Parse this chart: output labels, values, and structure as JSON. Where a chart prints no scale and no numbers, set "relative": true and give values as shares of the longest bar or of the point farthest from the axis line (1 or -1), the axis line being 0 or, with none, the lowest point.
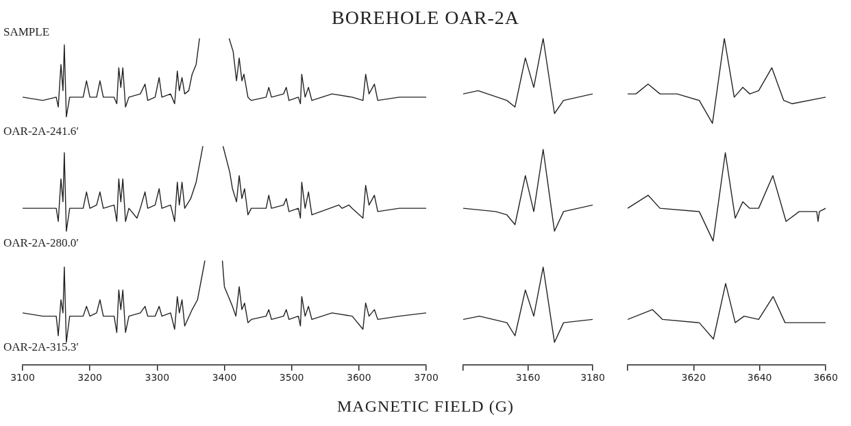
{
  "chart_data": [
    {
      "type": "line",
      "title": "BOREHOLE OAR-2A",
      "xlabel": "MAGNETIC FIELD (G)",
      "annotations": [
        "SAMPLE"
      ],
      "relative": true,
      "xlim": [
        3100,
        3700
      ],
      "xticks": [
        3100,
        3200,
        3300,
        3400,
        3500,
        3600,
        3700
      ],
      "series": [
        {
          "name": "OAR-2A-241.6′",
          "color": "#222222",
          "x": [
            3100,
            3130,
            3150,
            3153,
            3157,
            3160,
            3162,
            3165,
            3170,
            3190,
            3195,
            3200,
            3210,
            3215,
            3220,
            3236,
            3240,
            3243,
            3246,
            3249,
            3253,
            3258,
            3275,
            3282,
            3286,
            3297,
            3303,
            3307,
            3320,
            3326,
            3330,
            3333,
            3337,
            3341,
            3347,
            3352,
            3358,
            3363,
            3385,
            3407,
            3413,
            3418,
            3422,
            3426,
            3429,
            3435,
            3440,
            3462,
            3466,
            3470,
            3488,
            3492,
            3496,
            3510,
            3513,
            3515,
            3520,
            3525,
            3530,
            3560,
            3590,
            3606,
            3610,
            3615,
            3623,
            3628,
            3660,
            3688,
            3700
          ],
          "values": [
            0.82,
            0.81,
            0.82,
            0.79,
            0.92,
            0.84,
            0.98,
            0.76,
            0.82,
            0.82,
            0.87,
            0.82,
            0.82,
            0.87,
            0.82,
            0.82,
            0.8,
            0.91,
            0.85,
            0.91,
            0.79,
            0.82,
            0.83,
            0.86,
            0.81,
            0.82,
            0.88,
            0.82,
            0.83,
            0.8,
            0.9,
            0.84,
            0.88,
            0.83,
            0.84,
            0.89,
            0.92,
            1,
            null,
            1,
            0.96,
            0.87,
            0.94,
            0.87,
            0.89,
            0.82,
            0.81,
            0.82,
            0.85,
            0.82,
            0.83,
            0.85,
            0.81,
            0.82,
            0.8,
            0.89,
            0.82,
            0.85,
            0.81,
            0.83,
            0.82,
            0.81,
            0.89,
            0.83,
            0.86,
            0.81,
            0.82,
            0.82,
            0.82
          ]
        },
        {
          "name": "OAR-2A-280.0′",
          "color": "#222222",
          "x": [
            3100,
            3130,
            3150,
            3153,
            3157,
            3160,
            3162,
            3165,
            3170,
            3190,
            3195,
            3200,
            3210,
            3215,
            3220,
            3236,
            3240,
            3243,
            3246,
            3249,
            3253,
            3258,
            3270,
            3275,
            3282,
            3286,
            3297,
            3303,
            3307,
            3320,
            3326,
            3330,
            3333,
            3337,
            3341,
            3350,
            3358,
            3368,
            3383,
            3398,
            3408,
            3412,
            3418,
            3422,
            3426,
            3430,
            3435,
            3440,
            3462,
            3466,
            3470,
            3488,
            3492,
            3496,
            3510,
            3513,
            3515,
            3520,
            3525,
            3530,
            3570,
            3575,
            3585,
            3590,
            3606,
            3610,
            3615,
            3623,
            3628,
            3660,
            3700
          ],
          "values": [
            0.48,
            0.48,
            0.48,
            0.44,
            0.57,
            0.5,
            0.65,
            0.41,
            0.48,
            0.48,
            0.53,
            0.48,
            0.49,
            0.53,
            0.48,
            0.49,
            0.44,
            0.57,
            0.5,
            0.57,
            0.44,
            0.48,
            0.45,
            0.48,
            0.53,
            0.48,
            0.49,
            0.54,
            0.48,
            0.49,
            0.44,
            0.56,
            0.49,
            0.56,
            0.48,
            0.51,
            0.56,
            0.67,
            null,
            0.67,
            0.59,
            0.54,
            0.5,
            0.58,
            0.51,
            0.54,
            0.46,
            0.48,
            0.48,
            0.52,
            0.48,
            0.49,
            0.51,
            0.47,
            0.48,
            0.45,
            0.56,
            0.48,
            0.53,
            0.46,
            0.49,
            0.48,
            0.49,
            0.48,
            0.45,
            0.55,
            0.49,
            0.52,
            0.47,
            0.48,
            0.48
          ]
        },
        {
          "name": "OAR-2A-315.3′",
          "color": "#222222",
          "x": [
            3100,
            3130,
            3150,
            3153,
            3157,
            3160,
            3162,
            3165,
            3170,
            3190,
            3195,
            3200,
            3210,
            3215,
            3220,
            3236,
            3240,
            3243,
            3246,
            3249,
            3253,
            3258,
            3275,
            3282,
            3286,
            3297,
            3303,
            3307,
            3320,
            3326,
            3330,
            3333,
            3337,
            3341,
            3352,
            3360,
            3371,
            3384,
            3397,
            3400,
            3412,
            3417,
            3422,
            3426,
            3430,
            3435,
            3440,
            3462,
            3466,
            3470,
            3488,
            3492,
            3496,
            3510,
            3513,
            3515,
            3520,
            3525,
            3530,
            3560,
            3590,
            3606,
            3610,
            3615,
            3623,
            3628,
            3660,
            3700
          ],
          "values": [
            0.16,
            0.15,
            0.15,
            0.09,
            0.2,
            0.16,
            0.3,
            0.07,
            0.15,
            0.15,
            0.18,
            0.15,
            0.16,
            0.2,
            0.15,
            0.15,
            0.1,
            0.23,
            0.17,
            0.23,
            0.1,
            0.15,
            0.16,
            0.18,
            0.15,
            0.15,
            0.18,
            0.15,
            0.16,
            0.11,
            0.21,
            0.16,
            0.2,
            0.12,
            0.17,
            0.2,
            0.32,
            null,
            0.32,
            0.24,
            0.18,
            0.15,
            0.24,
            0.17,
            0.19,
            0.13,
            0.14,
            0.15,
            0.17,
            0.14,
            0.15,
            0.17,
            0.14,
            0.15,
            0.12,
            0.21,
            0.15,
            0.18,
            0.14,
            0.16,
            0.15,
            0.11,
            0.19,
            0.15,
            0.17,
            0.14,
            0.15,
            0.16
          ]
        }
      ]
    },
    {
      "type": "line",
      "relative": true,
      "xlim": [
        3140,
        3180
      ],
      "xticks": [
        {
          "value": 3140,
          "label": null
        },
        3160,
        3180
      ],
      "series": [
        {
          "color": "#222222",
          "x": [
            3140,
            3144.6,
            3153.5,
            3156,
            3159.2,
            3161.8,
            3164.7,
            3168.2,
            3171,
            3180
          ],
          "values": [
            0.83,
            0.84,
            0.81,
            0.79,
            0.94,
            0.85,
            1,
            0.77,
            0.81,
            0.83
          ]
        },
        {
          "color": "#222222",
          "x": [
            3140,
            3150,
            3153.5,
            3156,
            3159.2,
            3161.8,
            3164.7,
            3168.2,
            3171,
            3180
          ],
          "values": [
            0.48,
            0.47,
            0.46,
            0.43,
            0.58,
            0.47,
            0.66,
            0.41,
            0.47,
            0.49
          ]
        },
        {
          "color": "#222222",
          "x": [
            3140,
            3145,
            3153.5,
            3156,
            3159.2,
            3161.8,
            3164.7,
            3168.2,
            3171,
            3180
          ],
          "values": [
            0.14,
            0.15,
            0.13,
            0.09,
            0.23,
            0.15,
            0.3,
            0.07,
            0.13,
            0.14
          ]
        }
      ]
    },
    {
      "type": "line",
      "relative": true,
      "xlim": [
        3600,
        3660
      ],
      "xticks": [
        {
          "value": 3600,
          "label": null
        },
        3620,
        3640,
        3660
      ],
      "series": [
        {
          "color": "#222222",
          "x": [
            3600,
            3602.5,
            3606.2,
            3609.8,
            3615,
            3621.7,
            3625.7,
            3629.3,
            3632.3,
            3634.9,
            3637,
            3639.7,
            3643.7,
            3647.3,
            3649.8,
            3660
          ],
          "values": [
            0.83,
            0.83,
            0.86,
            0.83,
            0.83,
            0.81,
            0.74,
            1,
            0.82,
            0.85,
            0.83,
            0.84,
            0.91,
            0.81,
            0.8,
            0.82
          ]
        },
        {
          "color": "#222222",
          "x": [
            3600,
            3606.2,
            3609.8,
            3621.7,
            3625.9,
            3629.6,
            3632.6,
            3634.9,
            3637,
            3639.7,
            3644,
            3648,
            3652,
            3657.3,
            3657.7,
            3658.1,
            3660
          ],
          "values": [
            0.48,
            0.52,
            0.48,
            0.47,
            0.38,
            0.65,
            0.45,
            0.5,
            0.48,
            0.48,
            0.58,
            0.44,
            0.47,
            0.47,
            0.44,
            0.47,
            0.48
          ]
        },
        {
          "color": "#222222",
          "x": [
            3600,
            3607.5,
            3610.6,
            3621.7,
            3626,
            3629.7,
            3632.6,
            3635.3,
            3639.7,
            3644.1,
            3647.7,
            3660
          ],
          "values": [
            0.14,
            0.17,
            0.14,
            0.13,
            0.08,
            0.25,
            0.13,
            0.15,
            0.14,
            0.21,
            0.13,
            0.13
          ]
        }
      ]
    }
  ]
}
